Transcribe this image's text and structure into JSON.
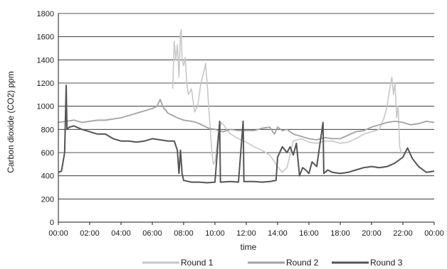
{
  "chart_data": {
    "type": "line",
    "xlabel": "time",
    "ylabel": "Carbon dioxide (CO2) ppm",
    "xlim": [
      0,
      24
    ],
    "ylim": [
      0,
      1800
    ],
    "y_ticks": [
      0,
      200,
      400,
      600,
      800,
      1000,
      1200,
      1400,
      1600,
      1800
    ],
    "x_ticks": [
      {
        "value": 0,
        "label": "00:00"
      },
      {
        "value": 2,
        "label": "02:00"
      },
      {
        "value": 4,
        "label": "04:00"
      },
      {
        "value": 6,
        "label": "06:00"
      },
      {
        "value": 8,
        "label": "08:00"
      },
      {
        "value": 10,
        "label": "10:00"
      },
      {
        "value": 12,
        "label": "12:00"
      },
      {
        "value": 14,
        "label": "14:00"
      },
      {
        "value": 16,
        "label": "16:00"
      },
      {
        "value": 18,
        "label": "18:00"
      },
      {
        "value": 20,
        "label": "20:00"
      },
      {
        "value": 22,
        "label": "22:00"
      },
      {
        "value": 24,
        "label": "00:00"
      }
    ],
    "grid": "horizontal",
    "legend_position": "bottom",
    "series": [
      {
        "name": "Round 1",
        "color": "#c8c8c8",
        "points": [
          [
            7.3,
            1150
          ],
          [
            7.4,
            1560
          ],
          [
            7.5,
            1400
          ],
          [
            7.6,
            1530
          ],
          [
            7.7,
            1250
          ],
          [
            7.8,
            1630
          ],
          [
            7.85,
            1660
          ],
          [
            7.9,
            1400
          ],
          [
            8.0,
            1350
          ],
          [
            8.1,
            1420
          ],
          [
            8.2,
            1200
          ],
          [
            8.3,
            1100
          ],
          [
            8.5,
            1150
          ],
          [
            8.7,
            950
          ],
          [
            8.9,
            1000
          ],
          [
            9.1,
            1200
          ],
          [
            9.3,
            1300
          ],
          [
            9.4,
            1370
          ],
          [
            9.5,
            1200
          ],
          [
            9.6,
            1000
          ],
          [
            9.7,
            800
          ],
          [
            9.8,
            600
          ],
          [
            9.9,
            500
          ],
          [
            10.0,
            520
          ],
          [
            10.2,
            750
          ],
          [
            10.4,
            860
          ],
          [
            10.6,
            830
          ],
          [
            10.8,
            790
          ],
          [
            11.0,
            760
          ],
          [
            11.5,
            720
          ],
          [
            12.0,
            690
          ],
          [
            12.5,
            650
          ],
          [
            13.0,
            620
          ],
          [
            13.5,
            580
          ],
          [
            14.0,
            480
          ],
          [
            14.3,
            430
          ],
          [
            14.6,
            470
          ],
          [
            15.0,
            700
          ],
          [
            15.5,
            720
          ],
          [
            16.0,
            690
          ],
          [
            16.5,
            680
          ],
          [
            17.0,
            700
          ],
          [
            17.5,
            700
          ],
          [
            18.0,
            680
          ],
          [
            18.5,
            690
          ],
          [
            19.0,
            720
          ],
          [
            19.5,
            760
          ],
          [
            20.0,
            780
          ],
          [
            20.5,
            800
          ],
          [
            20.8,
            900
          ],
          [
            21.0,
            1000
          ],
          [
            21.1,
            1100
          ],
          [
            21.2,
            1180
          ],
          [
            21.3,
            1250
          ],
          [
            21.4,
            1100
          ],
          [
            21.5,
            1200
          ],
          [
            21.6,
            900
          ],
          [
            21.7,
            1000
          ],
          [
            21.8,
            650
          ],
          [
            21.9,
            600
          ]
        ]
      },
      {
        "name": "Round 2",
        "color": "#a2a2a2",
        "points": [
          [
            0.0,
            860
          ],
          [
            0.5,
            870
          ],
          [
            1.0,
            880
          ],
          [
            1.5,
            860
          ],
          [
            2.0,
            870
          ],
          [
            2.5,
            880
          ],
          [
            3.0,
            880
          ],
          [
            3.5,
            890
          ],
          [
            4.0,
            900
          ],
          [
            4.5,
            920
          ],
          [
            5.0,
            940
          ],
          [
            5.5,
            960
          ],
          [
            6.0,
            980
          ],
          [
            6.3,
            1000
          ],
          [
            6.5,
            1060
          ],
          [
            6.7,
            990
          ],
          [
            7.0,
            940
          ],
          [
            7.3,
            920
          ],
          [
            7.6,
            900
          ],
          [
            8.0,
            880
          ],
          [
            8.5,
            870
          ],
          [
            8.8,
            860
          ],
          [
            9.0,
            850
          ],
          [
            9.3,
            830
          ],
          [
            9.6,
            810
          ],
          [
            10.0,
            800
          ],
          [
            10.5,
            780
          ],
          [
            11.0,
            800
          ],
          [
            11.5,
            790
          ],
          [
            12.0,
            790
          ],
          [
            12.5,
            790
          ],
          [
            13.0,
            810
          ],
          [
            13.5,
            820
          ],
          [
            13.8,
            760
          ],
          [
            14.0,
            820
          ],
          [
            14.3,
            790
          ],
          [
            14.6,
            800
          ],
          [
            15.0,
            760
          ],
          [
            15.5,
            740
          ],
          [
            16.0,
            720
          ],
          [
            16.5,
            710
          ],
          [
            17.0,
            730
          ],
          [
            17.5,
            720
          ],
          [
            18.0,
            720
          ],
          [
            18.5,
            750
          ],
          [
            19.0,
            780
          ],
          [
            19.5,
            790
          ],
          [
            20.0,
            820
          ],
          [
            20.5,
            840
          ],
          [
            21.0,
            860
          ],
          [
            21.5,
            870
          ],
          [
            22.0,
            860
          ],
          [
            22.5,
            840
          ],
          [
            23.0,
            850
          ],
          [
            23.5,
            870
          ],
          [
            24.0,
            860
          ]
        ]
      },
      {
        "name": "Round 3",
        "color": "#555555",
        "points": [
          [
            0.0,
            430
          ],
          [
            0.2,
            440
          ],
          [
            0.4,
            600
          ],
          [
            0.5,
            1180
          ],
          [
            0.55,
            800
          ],
          [
            0.7,
            820
          ],
          [
            1.0,
            830
          ],
          [
            1.5,
            800
          ],
          [
            2.0,
            780
          ],
          [
            2.5,
            760
          ],
          [
            3.0,
            760
          ],
          [
            3.5,
            720
          ],
          [
            4.0,
            700
          ],
          [
            4.5,
            700
          ],
          [
            5.0,
            690
          ],
          [
            5.5,
            700
          ],
          [
            6.0,
            720
          ],
          [
            6.5,
            710
          ],
          [
            7.0,
            700
          ],
          [
            7.4,
            700
          ],
          [
            7.6,
            620
          ],
          [
            7.7,
            420
          ],
          [
            7.8,
            620
          ],
          [
            7.9,
            420
          ],
          [
            8.0,
            360
          ],
          [
            8.5,
            345
          ],
          [
            9.0,
            345
          ],
          [
            9.5,
            340
          ],
          [
            10.0,
            345
          ],
          [
            10.3,
            870
          ],
          [
            10.35,
            345
          ],
          [
            11.0,
            350
          ],
          [
            11.5,
            345
          ],
          [
            11.8,
            870
          ],
          [
            11.85,
            350
          ],
          [
            12.0,
            350
          ],
          [
            12.5,
            350
          ],
          [
            13.0,
            345
          ],
          [
            13.5,
            350
          ],
          [
            13.9,
            360
          ],
          [
            14.0,
            560
          ],
          [
            14.3,
            650
          ],
          [
            14.6,
            600
          ],
          [
            14.8,
            650
          ],
          [
            15.0,
            580
          ],
          [
            15.2,
            680
          ],
          [
            15.4,
            400
          ],
          [
            15.6,
            470
          ],
          [
            15.8,
            450
          ],
          [
            16.0,
            420
          ],
          [
            16.2,
            520
          ],
          [
            16.5,
            480
          ],
          [
            16.9,
            860
          ],
          [
            16.95,
            420
          ],
          [
            17.2,
            450
          ],
          [
            17.5,
            430
          ],
          [
            18.0,
            420
          ],
          [
            18.5,
            430
          ],
          [
            19.0,
            450
          ],
          [
            19.5,
            470
          ],
          [
            20.0,
            480
          ],
          [
            20.5,
            470
          ],
          [
            21.0,
            480
          ],
          [
            21.5,
            510
          ],
          [
            22.0,
            560
          ],
          [
            22.3,
            640
          ],
          [
            22.6,
            550
          ],
          [
            23.0,
            480
          ],
          [
            23.5,
            430
          ],
          [
            24.0,
            440
          ]
        ]
      }
    ]
  }
}
